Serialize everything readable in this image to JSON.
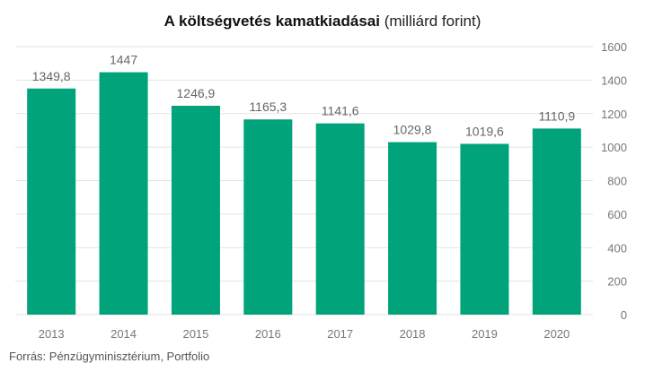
{
  "title": {
    "bold": "A költségvetés kamatkiadásai",
    "normal": " (milliárd forint)"
  },
  "source": "Forrás: Pénzügyminisztérium, Portfolio",
  "colors": {
    "bar": "#00a37a",
    "grid": "#e3e3e3",
    "label": "#666666"
  },
  "chart_data": {
    "type": "bar",
    "title": "A költségvetés kamatkiadásai (milliárd forint)",
    "categories": [
      "2013",
      "2014",
      "2015",
      "2016",
      "2017",
      "2018",
      "2019",
      "2020"
    ],
    "values": [
      1349.8,
      1447,
      1246.9,
      1165.3,
      1141.6,
      1029.8,
      1019.6,
      1110.9
    ],
    "value_labels": [
      "1349,8",
      "1447",
      "1246,9",
      "1165,3",
      "1141,6",
      "1029,8",
      "1019,6",
      "1110,9"
    ],
    "y_ticks": [
      "0",
      "200",
      "400",
      "600",
      "800",
      "1000",
      "1200",
      "1400",
      "1600"
    ],
    "ylim": [
      0,
      1600
    ],
    "y_axis_side": "right",
    "grid": true,
    "legend": false,
    "xlabel": "",
    "ylabel": ""
  }
}
